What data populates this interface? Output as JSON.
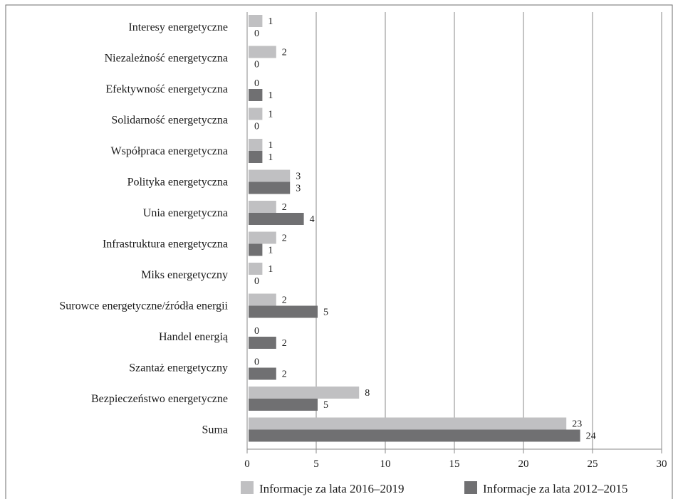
{
  "chart_data": {
    "type": "bar",
    "orientation": "horizontal",
    "categories": [
      "Interesy energetyczne",
      "Niezależność energetyczna",
      "Efektywność energetyczna",
      "Solidarność energetyczna",
      "Współpraca energetyczna",
      "Polityka energetyczna",
      "Unia energetyczna",
      "Infrastruktura energetyczna",
      "Miks energetyczny",
      "Surowce energetyczne/źródła energii",
      "Handel energią",
      "Szantaż energetyczny",
      "Bezpieczeństwo energetyczne",
      "Suma"
    ],
    "series": [
      {
        "name": "Informacje za lata 2016–2019",
        "color": "#c0c0c2",
        "values": [
          1,
          2,
          0,
          1,
          1,
          3,
          2,
          2,
          1,
          2,
          0,
          0,
          8,
          23
        ]
      },
      {
        "name": "Informacje za lata 2012–2015",
        "color": "#707072",
        "values": [
          0,
          0,
          1,
          0,
          1,
          3,
          4,
          1,
          0,
          5,
          2,
          2,
          5,
          24
        ]
      }
    ],
    "xlim": [
      0,
      30
    ],
    "xticks": [
      0,
      5,
      10,
      15,
      20,
      25,
      30
    ],
    "grid": "vertical",
    "legend_position": "bottom"
  }
}
